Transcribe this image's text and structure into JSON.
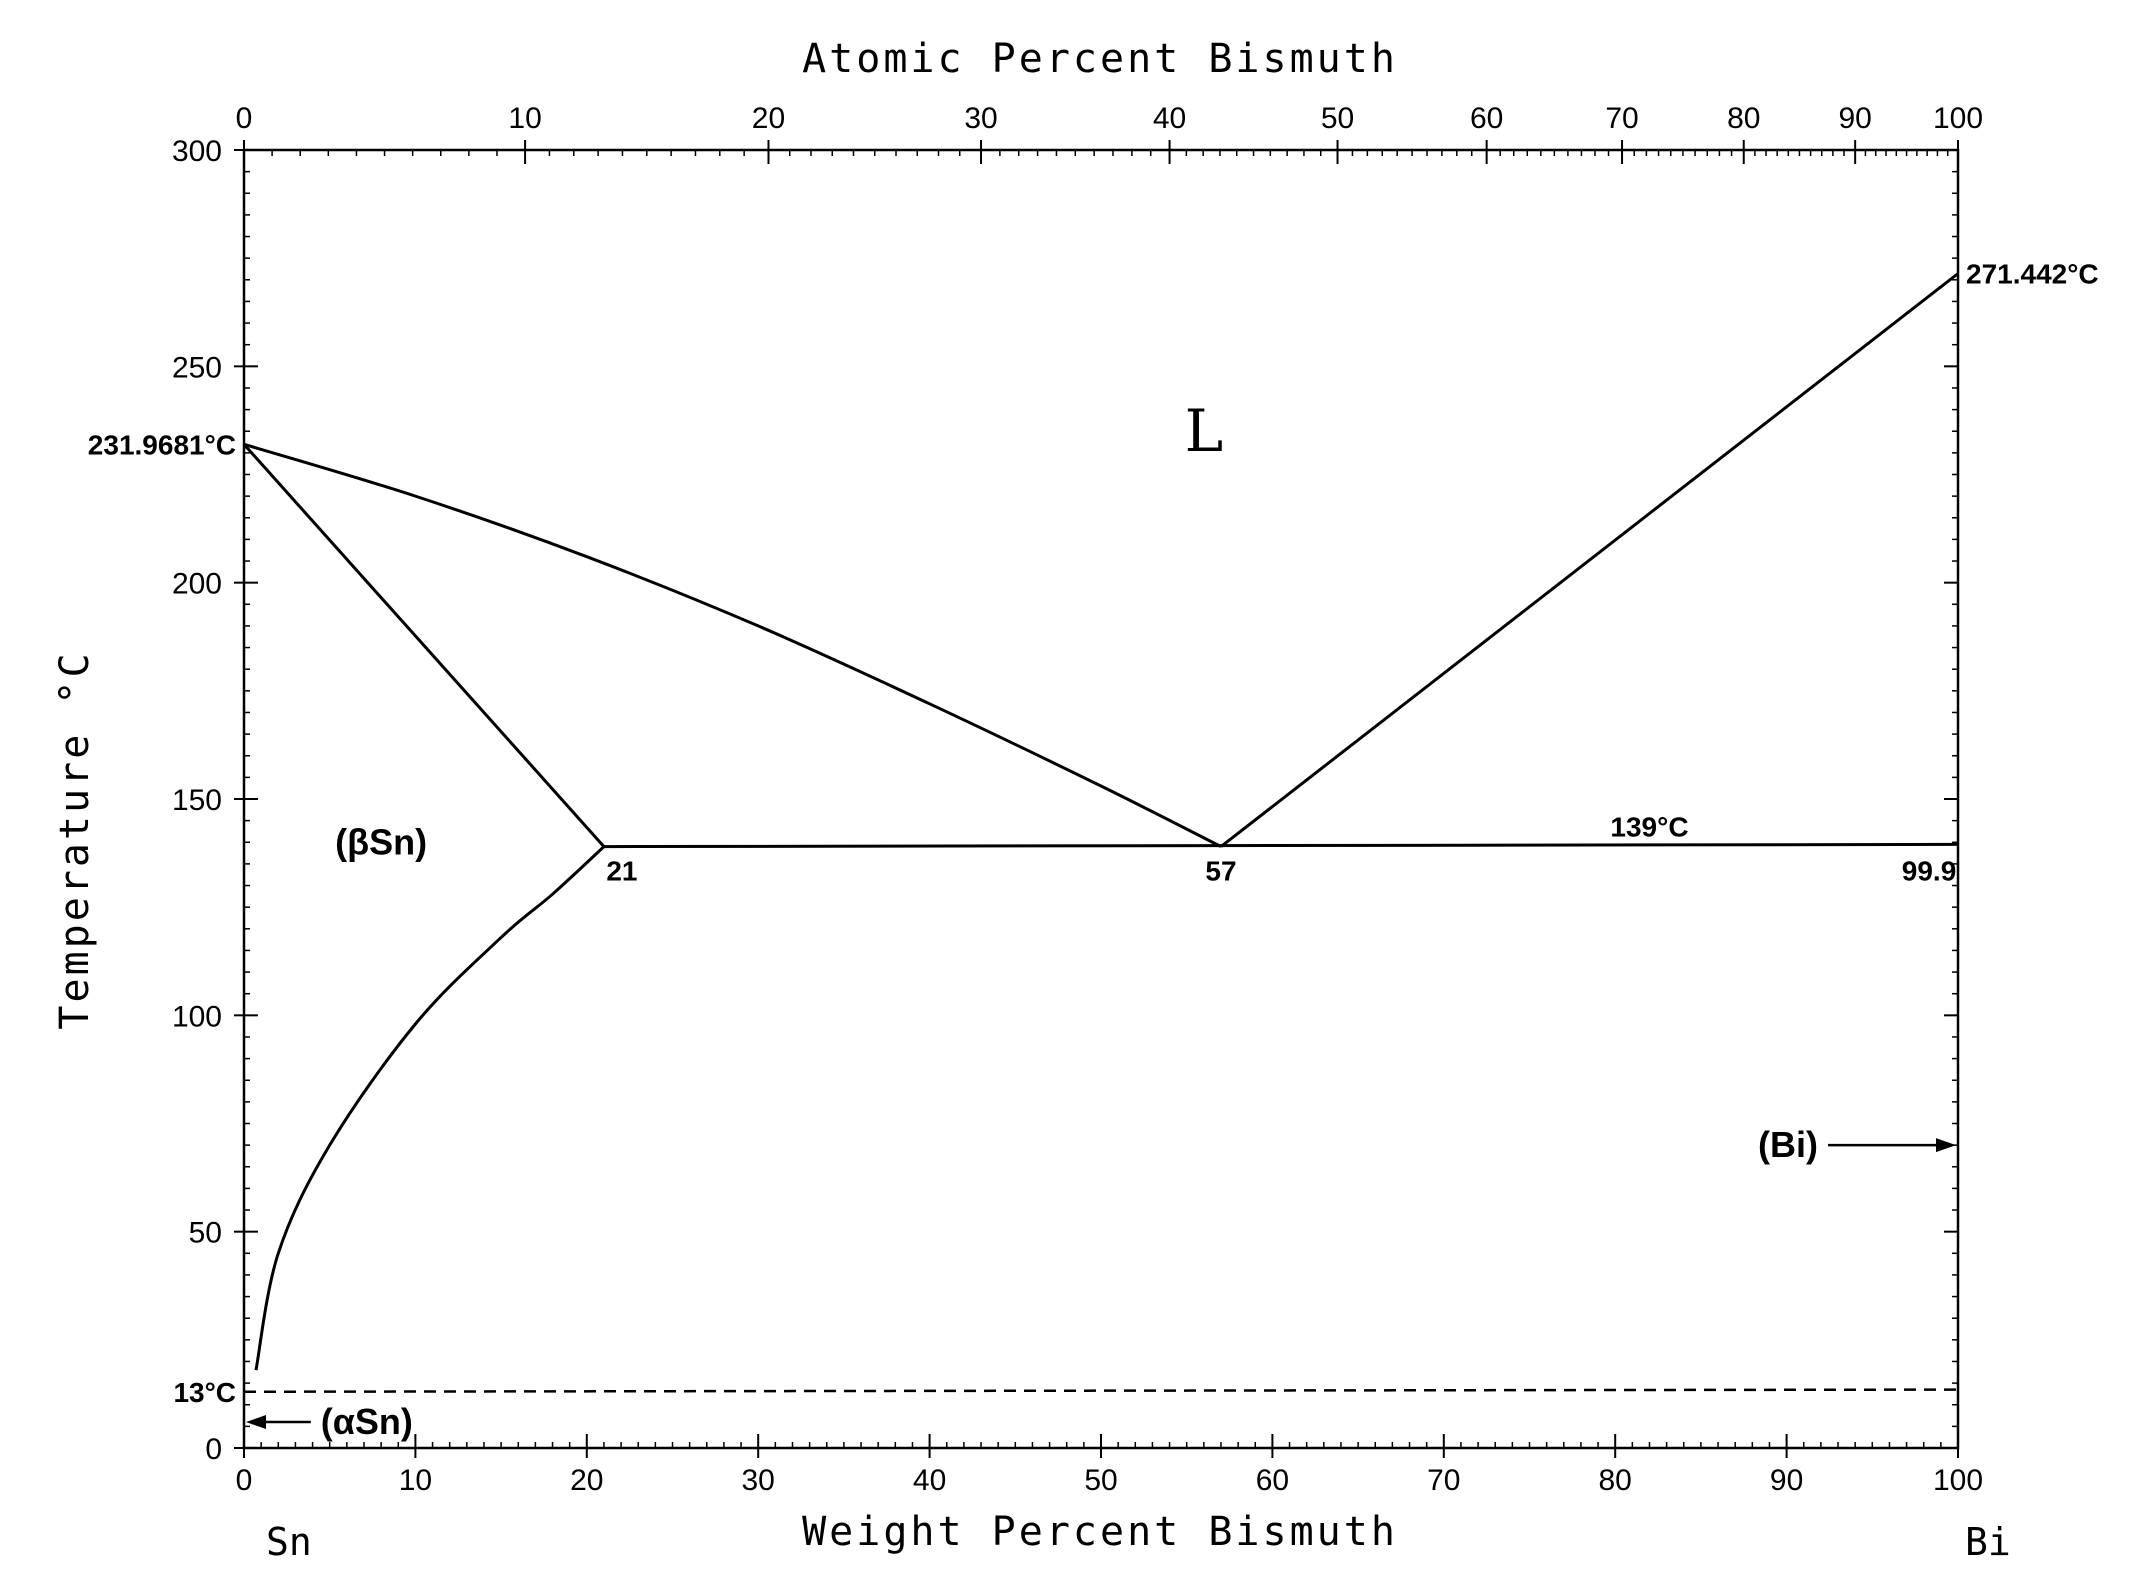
{
  "chart_data": {
    "type": "line",
    "title": "Atomic Percent Bismuth",
    "xlabel": "Weight Percent Bismuth",
    "ylabel": "Temperature °C",
    "xlim": [
      0,
      100
    ],
    "ylim": [
      0,
      300
    ],
    "x_ticks": [
      "0",
      "10",
      "20",
      "30",
      "40",
      "50",
      "60",
      "70",
      "80",
      "90",
      "100"
    ],
    "y_ticks": [
      "0",
      "50",
      "100",
      "150",
      "200",
      "250",
      "300"
    ],
    "top_axis": {
      "label": "Atomic Percent Bismuth",
      "ticks": [
        {
          "at": 0,
          "label": "0"
        },
        {
          "at": 16.4,
          "label": "10"
        },
        {
          "at": 30.6,
          "label": "20"
        },
        {
          "at": 43.0,
          "label": "30"
        },
        {
          "at": 54.0,
          "label": "40"
        },
        {
          "at": 63.8,
          "label": "50"
        },
        {
          "at": 72.5,
          "label": "60"
        },
        {
          "at": 80.4,
          "label": "70"
        },
        {
          "at": 87.5,
          "label": "80"
        },
        {
          "at": 94.0,
          "label": "90"
        },
        {
          "at": 100,
          "label": "100"
        }
      ]
    },
    "end_labels": {
      "left": "Sn",
      "right": "Bi"
    },
    "series": [
      {
        "name": "Liquidus (Sn side)",
        "x": [
          0,
          10,
          20,
          30,
          40,
          50,
          57
        ],
        "y": [
          231.97,
          220,
          206,
          190,
          172,
          153,
          139
        ]
      },
      {
        "name": "Liquidus (Bi side)",
        "x": [
          57,
          100
        ],
        "y": [
          139,
          271.44
        ]
      },
      {
        "name": "Solidus (βSn)",
        "x": [
          0,
          21
        ],
        "y": [
          231.97,
          139
        ]
      },
      {
        "name": "Solvus (βSn)",
        "x": [
          21,
          18,
          15,
          10,
          5,
          2,
          0.7
        ],
        "y": [
          139,
          128,
          118,
          98,
          70,
          45,
          18
        ]
      },
      {
        "name": "Eutectic isotherm",
        "x": [
          21,
          100
        ],
        "y": [
          139,
          139.5
        ]
      },
      {
        "name": "αSn/βSn transition",
        "x": [
          0,
          100
        ],
        "y": [
          13,
          13.5
        ]
      }
    ],
    "temperature_labels": [
      {
        "text": "231.9681°C",
        "x": 0,
        "y": 231.97
      },
      {
        "text": "271.442°C",
        "x": 100,
        "y": 271.44
      },
      {
        "text": "139°C",
        "x": 82,
        "y": 139
      },
      {
        "text": "13°C",
        "x": 0,
        "y": 13
      }
    ],
    "composition_labels": [
      {
        "text": "21",
        "x": 21,
        "y": 139
      },
      {
        "text": "57",
        "x": 57,
        "y": 139
      },
      {
        "text": "99.9",
        "x": 99.9,
        "y": 139
      }
    ],
    "phase_labels": [
      {
        "text": "L",
        "x": 56,
        "y": 235
      },
      {
        "text": "(βSn)",
        "x": 8,
        "y": 140
      },
      {
        "text": "(Bi)",
        "x": 93,
        "y": 70
      },
      {
        "text": "(αSn)",
        "x": 6,
        "y": 6
      }
    ]
  }
}
